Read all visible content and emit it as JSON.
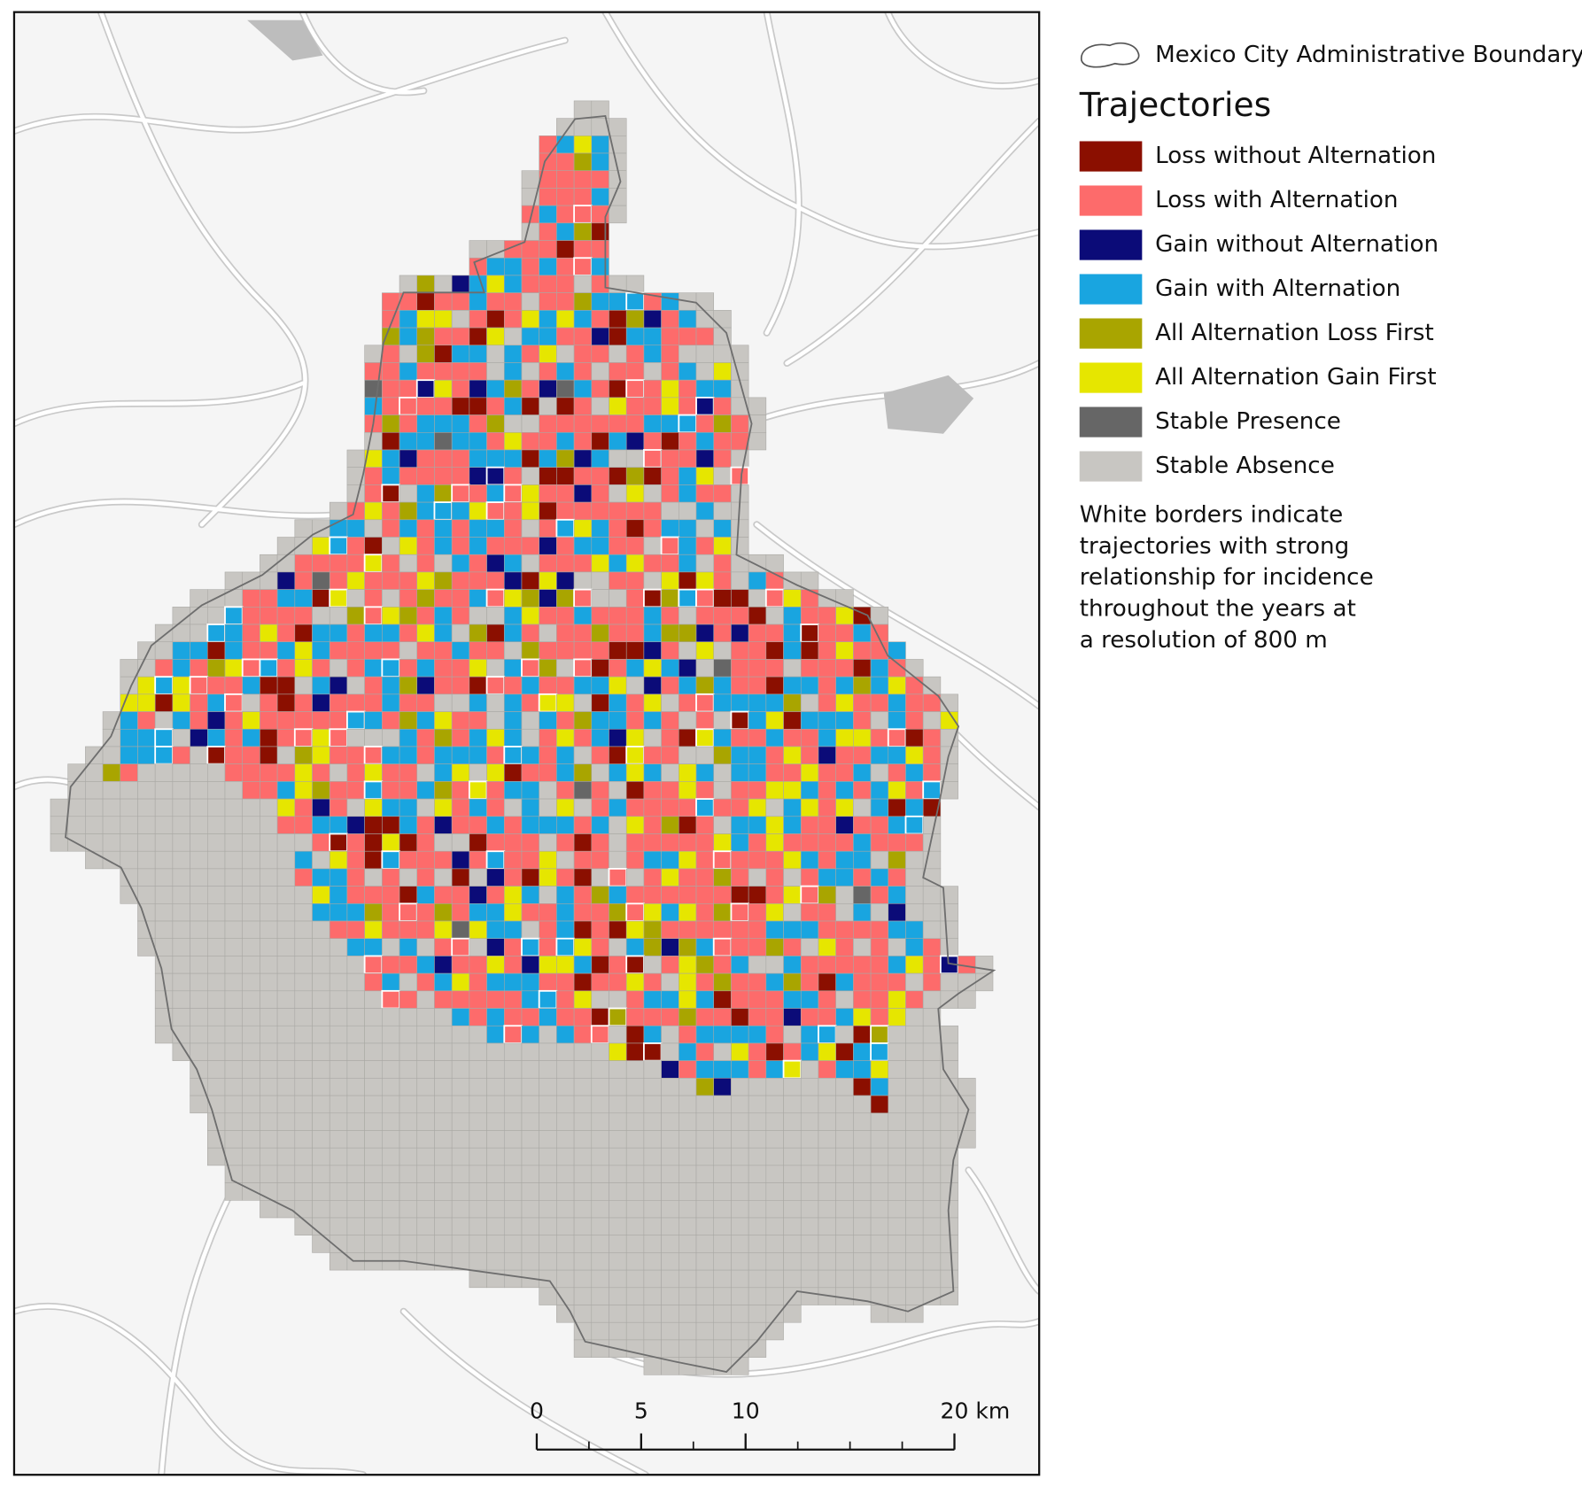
{
  "legend": {
    "boundary_label": "Mexico City Administrative Boundary",
    "title": "Trajectories",
    "items": [
      {
        "label": "Loss without Alternation",
        "color": "#8b0f00"
      },
      {
        "label": "Loss with Alternation",
        "color": "#fd6b6b"
      },
      {
        "label": "Gain without Alternation",
        "color": "#0b0b78"
      },
      {
        "label": "Gain with Alternation",
        "color": "#19a5e0"
      },
      {
        "label": "All Alternation Loss First",
        "color": "#a9a500"
      },
      {
        "label": "All Alternation Gain First",
        "color": "#e6e600"
      },
      {
        "label": "Stable Presence",
        "color": "#666666"
      },
      {
        "label": "Stable Absence",
        "color": "#c8c6c2"
      }
    ],
    "note": [
      "White borders indicate",
      "trajectories with strong",
      "relationship for incidence",
      "throughout the years at",
      "a resolution of 800 m"
    ]
  },
  "scale_bar": {
    "ticks": [
      0,
      5,
      10,
      {
        "value": 20,
        "label": "20 km"
      }
    ]
  }
}
